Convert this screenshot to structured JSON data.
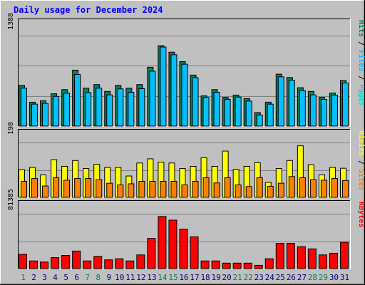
{
  "chart_data": {
    "type": "bar",
    "title": "Daily usage for December 2024",
    "categories": [
      "1",
      "2",
      "3",
      "4",
      "5",
      "6",
      "7",
      "8",
      "9",
      "10",
      "11",
      "12",
      "13",
      "14",
      "15",
      "16",
      "17",
      "18",
      "19",
      "20",
      "21",
      "22",
      "23",
      "24",
      "25",
      "26",
      "27",
      "28",
      "29",
      "30",
      "31"
    ],
    "weekend_days": [
      "1",
      "7",
      "8",
      "14",
      "15",
      "21",
      "22",
      "28",
      "29"
    ],
    "panels": [
      {
        "id": "traffic",
        "max_label": "1388",
        "ylim": [
          0,
          1388
        ],
        "legend": [
          "Pages",
          "Files",
          "Hits"
        ],
        "series": [
          {
            "name": "Hits",
            "values": [
              625,
              367,
              389,
              496,
              560,
              859,
              582,
              637,
              532,
              625,
              582,
              637,
              903,
              1233,
              1134,
              989,
              783,
              464,
              560,
              441,
              476,
              422,
              208,
              367,
              797,
              745,
              589,
              532,
              441,
              507,
              700
            ]
          },
          {
            "name": "Files",
            "values": [
              582,
              337,
              349,
              455,
              504,
              792,
              514,
              582,
              479,
              571,
              518,
              574,
              842,
              1213,
              1094,
              949,
              743,
              440,
              518,
              411,
              446,
              384,
              170,
              337,
              756,
              704,
              545,
              479,
              411,
              476,
              663
            ]
          },
          {
            "name": "Pages",
            "values": [
              0,
              0,
              0,
              0,
              0,
              0,
              0,
              0,
              0,
              0,
              0,
              0,
              0,
              0,
              0,
              0,
              0,
              0,
              0,
              0,
              0,
              0,
              0,
              0,
              0,
              0,
              0,
              0,
              0,
              0,
              0
            ]
          }
        ],
        "colors": {
          "Hits": "#00805c",
          "Files": "#00c0ff",
          "Pages": "#00e0e8"
        }
      },
      {
        "id": "visitors",
        "max_label": "198",
        "ylim": [
          0,
          198
        ],
        "legend": [
          "Sites",
          "Visits"
        ],
        "series": [
          {
            "name": "Visits",
            "values": [
              100,
              108,
              81,
              136,
              112,
              133,
              104,
              119,
              108,
              108,
              77,
              124,
              139,
              127,
              124,
              104,
              112,
              143,
              112,
              167,
              101,
              112,
              125,
              54,
              104,
              133,
              186,
              118,
              81,
              108,
              105
            ]
          },
          {
            "name": "Sites",
            "values": [
              58,
              68,
              41,
              71,
              62,
              68,
              68,
              64,
              51,
              45,
              49,
              58,
              58,
              58,
              58,
              45,
              58,
              71,
              52,
              71,
              45,
              39,
              71,
              40,
              51,
              75,
              71,
              64,
              62,
              68,
              61
            ]
          }
        ],
        "colors": {
          "Visits": "#ffff00",
          "Sites": "#ff8000"
        }
      },
      {
        "id": "kbytes",
        "max_label": "81385",
        "ylim": [
          0,
          81385
        ],
        "legend": [
          "KBytes"
        ],
        "series": [
          {
            "name": "KBytes",
            "values": [
              21161,
              11395,
              9767,
              16278,
              19534,
              26043,
              11395,
              18162,
              13023,
              14651,
              11395,
              20348,
              44762,
              77316,
              71937,
              58597,
              47203,
              11395,
              11395,
              8140,
              8140,
              8140,
              4884,
              14651,
              37438,
              37438,
              32554,
              29299,
              20348,
              22789,
              39065
            ]
          }
        ],
        "colors": {
          "KBytes": "#ff0000"
        }
      }
    ]
  }
}
